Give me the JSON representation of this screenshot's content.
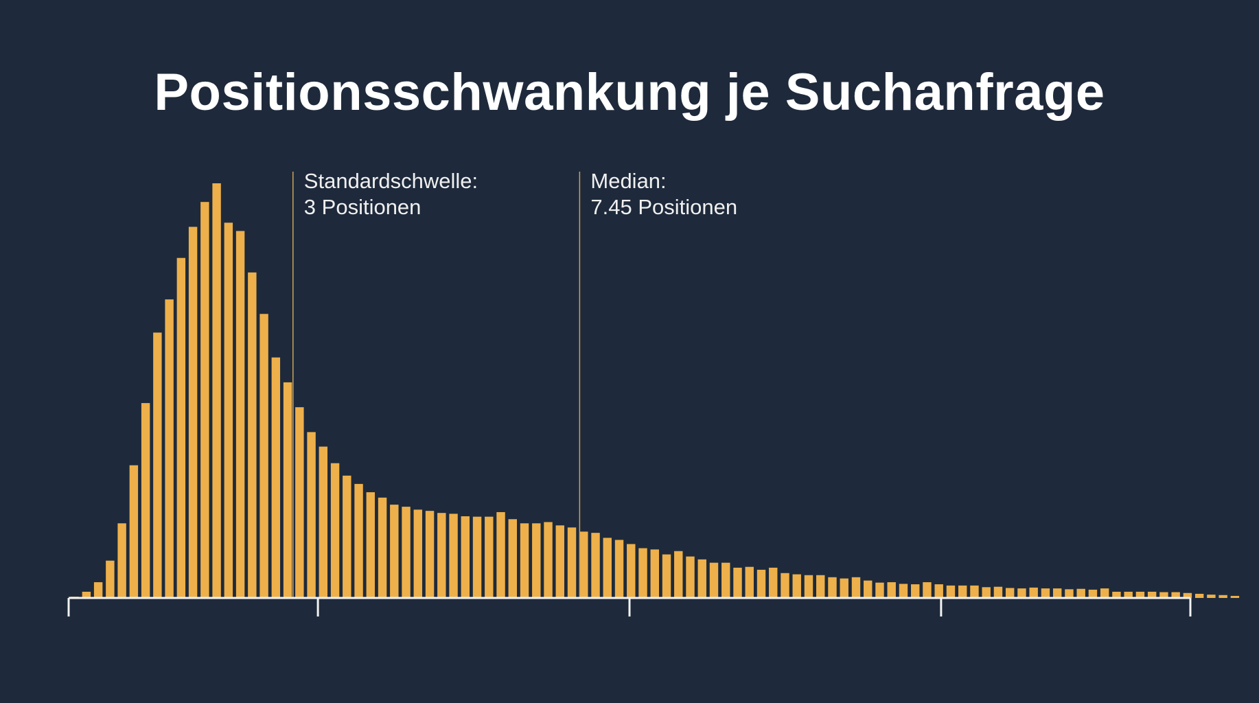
{
  "chart_data": {
    "type": "bar",
    "title": "Positionsschwankung je Suchanfrage",
    "xlim": [
      0,
      18
    ],
    "ylim": [
      0,
      100
    ],
    "bin_start": 0.0,
    "bin_width": 0.19,
    "values": [
      0.3,
      1.5,
      3.8,
      9,
      18,
      32,
      47,
      64,
      72,
      82,
      89.5,
      95.5,
      100,
      90.5,
      88.5,
      78.5,
      68.5,
      58,
      52,
      46,
      40,
      36.5,
      32.5,
      29.5,
      27.5,
      25.5,
      24.2,
      22.5,
      22,
      21.3,
      21,
      20.5,
      20.3,
      19.7,
      19.6,
      19.6,
      20.7,
      19,
      18,
      18,
      18.3,
      17.5,
      17,
      16,
      15.7,
      14.5,
      14,
      13,
      12,
      11.7,
      10.5,
      11.3,
      10,
      9.3,
      8.5,
      8.5,
      7.3,
      7.5,
      6.8,
      7.3,
      6,
      5.7,
      5.5,
      5.5,
      5,
      4.7,
      5,
      4.2,
      3.7,
      3.8,
      3.4,
      3.3,
      3.8,
      3.3,
      3,
      3,
      3,
      2.6,
      2.7,
      2.4,
      2.3,
      2.5,
      2.3,
      2.3,
      2.1,
      2.2,
      2,
      2.3,
      1.5,
      1.5,
      1.5,
      1.5,
      1.4,
      1.4,
      1.2,
      1,
      0.8,
      0.7,
      0.5
    ],
    "reference_lines": [
      {
        "x": 3.6,
        "label_line1": "Standardschwelle:",
        "label_line2": "3 Positionen"
      },
      {
        "x": 8.2,
        "label_line1": "Median:",
        "label_line2": "7.45 Positionen"
      }
    ],
    "x_ticks": [
      0,
      4,
      9,
      14,
      18
    ],
    "grid": false,
    "legend": "none"
  },
  "colors": {
    "background": "#1e2a3b",
    "bar": "#eeb04a",
    "axis": "#f2f2f2",
    "reference_line": "#c9a35a",
    "text": "#ffffff"
  }
}
